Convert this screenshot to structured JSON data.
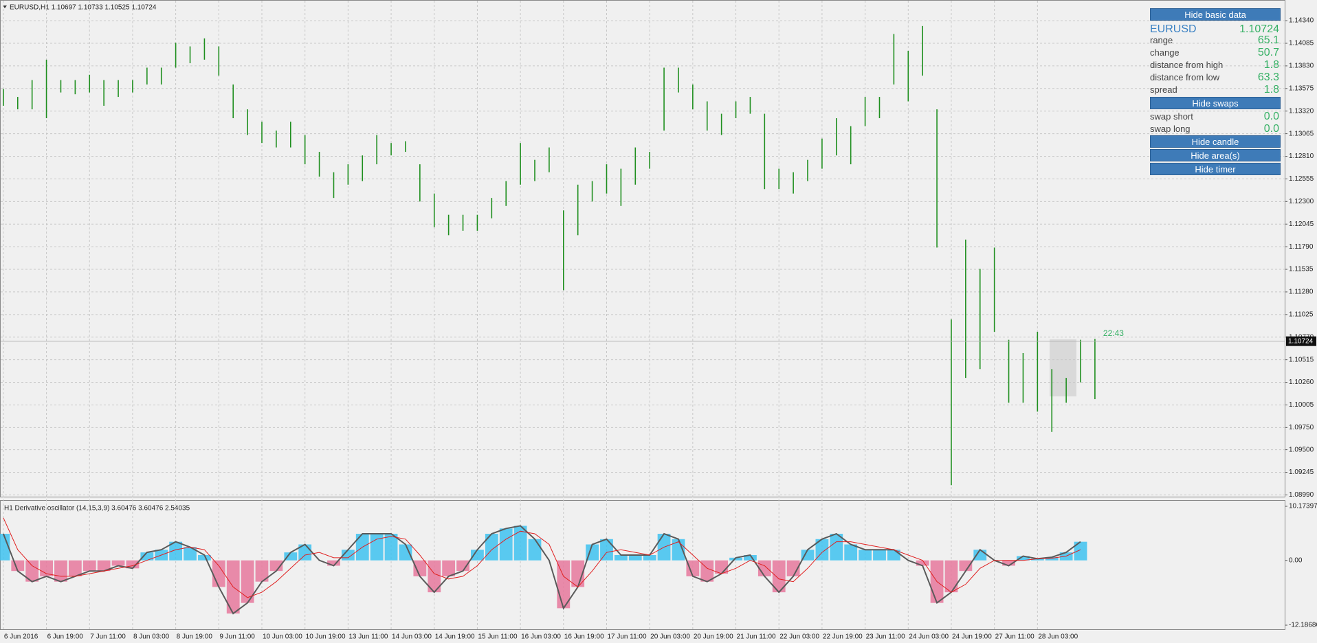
{
  "chart_data": [
    {
      "type": "hilo",
      "title": "EURUSD,H1  1.10697 1.10733 1.10525 1.10724",
      "color": "#1f8f1f",
      "high": [
        1.1357,
        1.1348,
        1.1367,
        1.139,
        1.1367,
        1.1367,
        1.1373,
        1.1367,
        1.1367,
        1.1367,
        1.1381,
        1.1381,
        1.1409,
        1.1405,
        1.1414,
        1.1405,
        1.1362,
        1.1334,
        1.132,
        1.131,
        1.132,
        1.1305,
        1.1286,
        1.1263,
        1.1272,
        1.1282,
        1.1305,
        1.1296,
        1.1298,
        1.1272,
        1.1239,
        1.1215,
        1.1215,
        1.1215,
        1.1234,
        1.1253,
        1.1296,
        1.1277,
        1.1291,
        1.122,
        1.1249,
        1.1253,
        1.1272,
        1.1267,
        1.1291,
        1.1286,
        1.1381,
        1.1381,
        1.1362,
        1.1343,
        1.1329,
        1.1343,
        1.1348,
        1.1329,
        1.1267,
        1.1263,
        1.1277,
        1.1301,
        1.1324,
        1.1315,
        1.1348,
        1.1348,
        1.1419,
        1.14,
        1.1428,
        1.1334,
        1.1097,
        1.1187,
        1.1154,
        1.1178,
        1.1074,
        1.1059,
        1.1083,
        1.1041,
        1.1031,
        1.1074,
        1.1075
      ],
      "low": [
        1.1338,
        1.1334,
        1.1334,
        1.1324,
        1.1353,
        1.1351,
        1.1353,
        1.1338,
        1.1348,
        1.1353,
        1.1362,
        1.1362,
        1.1381,
        1.1386,
        1.139,
        1.1372,
        1.1324,
        1.1305,
        1.1296,
        1.1291,
        1.1291,
        1.1272,
        1.1258,
        1.1234,
        1.1249,
        1.1253,
        1.1272,
        1.1282,
        1.1286,
        1.123,
        1.1201,
        1.1192,
        1.1197,
        1.1197,
        1.1211,
        1.1225,
        1.1249,
        1.1253,
        1.1263,
        1.113,
        1.1192,
        1.123,
        1.1239,
        1.1225,
        1.1249,
        1.1267,
        1.131,
        1.1353,
        1.1334,
        1.131,
        1.1305,
        1.1324,
        1.1329,
        1.1244,
        1.1244,
        1.1239,
        1.1253,
        1.1267,
        1.1282,
        1.1272,
        1.1315,
        1.1324,
        1.1362,
        1.1343,
        1.1372,
        1.1178,
        1.091,
        1.1031,
        1.1041,
        1.1083,
        1.1003,
        1.1003,
        1.0993,
        1.097,
        1.1003,
        1.1026,
        1.1007
      ],
      "ylim": [
        1.0897,
        1.1455
      ],
      "yticks": [
        {
          "value": 1.1434,
          "label": "1.14340"
        },
        1.14085,
        {
          "value": 1.1383,
          "label": "1.13830"
        },
        1.13575,
        {
          "value": 1.1332,
          "label": "1.13320"
        },
        1.13065,
        {
          "value": 1.1281,
          "label": "1.12810"
        },
        1.12555,
        {
          "value": 1.123,
          "label": "1.12300"
        },
        1.12045,
        {
          "value": 1.1179,
          "label": "1.11790"
        },
        1.11535,
        {
          "value": 1.1128,
          "label": "1.11280"
        },
        1.11025,
        {
          "value": 1.1077,
          "label": "1.10770"
        },
        1.10515,
        {
          "value": 1.1026,
          "label": "1.10260"
        },
        1.10005,
        {
          "value": 1.0975,
          "label": "1.09750"
        },
        {
          "value": 1.095,
          "label": "1.09500"
        },
        1.09245,
        {
          "value": 1.0899,
          "label": "1.08990"
        }
      ],
      "grid": true,
      "last_price": 1.10724,
      "timer": "22:43",
      "x_labels": [
        "6 Jun 2016",
        "6 Jun 19:00",
        "7 Jun 11:00",
        "8 Jun 03:00",
        "8 Jun 19:00",
        "9 Jun 11:00",
        "10 Jun 03:00",
        "10 Jun 19:00",
        "13 Jun 11:00",
        "14 Jun 03:00",
        "14 Jun 19:00",
        "15 Jun 11:00",
        "16 Jun 03:00",
        "16 Jun 19:00",
        "17 Jun 11:00",
        "20 Jun 03:00",
        "20 Jun 19:00",
        "21 Jun 11:00",
        "22 Jun 03:00",
        "22 Jun 19:00",
        "23 Jun 11:00",
        "24 Jun 03:00",
        "24 Jun 19:00",
        "27 Jun 11:00",
        "28 Jun 03:00"
      ]
    },
    {
      "type": "oscillator",
      "title": "H1 Derivative oscillator (14,15,3,9) 3.60476 3.60476 2.54035",
      "values": [
        5,
        -2,
        -4,
        -3,
        -4,
        -3,
        -2,
        -2,
        -1,
        -1.5,
        1.5,
        2,
        3.5,
        2.5,
        1,
        -5,
        -10,
        -8,
        -4,
        -2,
        1.5,
        3,
        0,
        -1,
        2,
        5,
        5,
        5,
        3,
        -3,
        -6,
        -3,
        -2,
        2,
        5,
        6,
        6.5,
        4,
        0,
        -9,
        -5,
        3,
        4,
        1,
        1,
        1,
        5,
        4,
        -3,
        -4,
        -2.5,
        0.5,
        1,
        -3,
        -6,
        -3,
        2,
        4,
        5,
        3,
        2,
        2,
        2,
        0,
        -1,
        -8,
        -6,
        -2,
        2,
        0,
        -1,
        0.8,
        0.3,
        0.6,
        1.5,
        3.5
      ],
      "signal": [
        8,
        2,
        -1,
        -2.5,
        -3,
        -3,
        -2.5,
        -2,
        -1.5,
        -1,
        0,
        1,
        2,
        2.5,
        2,
        -1,
        -5,
        -7,
        -6,
        -4,
        -1.5,
        1,
        1.5,
        0.5,
        0.5,
        2.5,
        4,
        4.5,
        4,
        1,
        -2.5,
        -3.5,
        -3,
        -1,
        2,
        4,
        5.5,
        5,
        3,
        -3,
        -5,
        -2,
        1.5,
        2,
        1.5,
        1,
        2.5,
        3.5,
        1,
        -1.5,
        -2.5,
        -1.5,
        0,
        -1,
        -3.5,
        -4,
        -1.5,
        1.5,
        3.5,
        3.5,
        3,
        2.5,
        2,
        1,
        0,
        -4,
        -6,
        -4.5,
        -1.5,
        0,
        0,
        0,
        0.3,
        0.4,
        0.8,
        2
      ],
      "positive_color": "#3ec2f0",
      "negative_color": "#e6789c",
      "line_color": "#5a5a5a",
      "signal_color": "#e02020",
      "ylim": [
        -12.96,
        10.95
      ],
      "yticks": [
        10.17397,
        {
          "value": 0,
          "label": "0.00"
        },
        -12.18686
      ]
    }
  ],
  "panel": {
    "basic_button": "Hide basic data",
    "symbol": "EURUSD",
    "price": "1.10724",
    "rows": [
      [
        "range",
        "65.1"
      ],
      [
        "change",
        "50.7"
      ],
      [
        "distance from high",
        "1.8"
      ],
      [
        "distance from low",
        "63.3"
      ],
      [
        "spread",
        "1.8"
      ]
    ],
    "swaps_button": "Hide swaps",
    "swap_rows": [
      [
        "swap short",
        "0.0"
      ],
      [
        "swap long",
        "0.0"
      ]
    ],
    "candle_button": "Hide candle",
    "area_button": "Hide area(s)",
    "timer_button": "Hide timer"
  }
}
